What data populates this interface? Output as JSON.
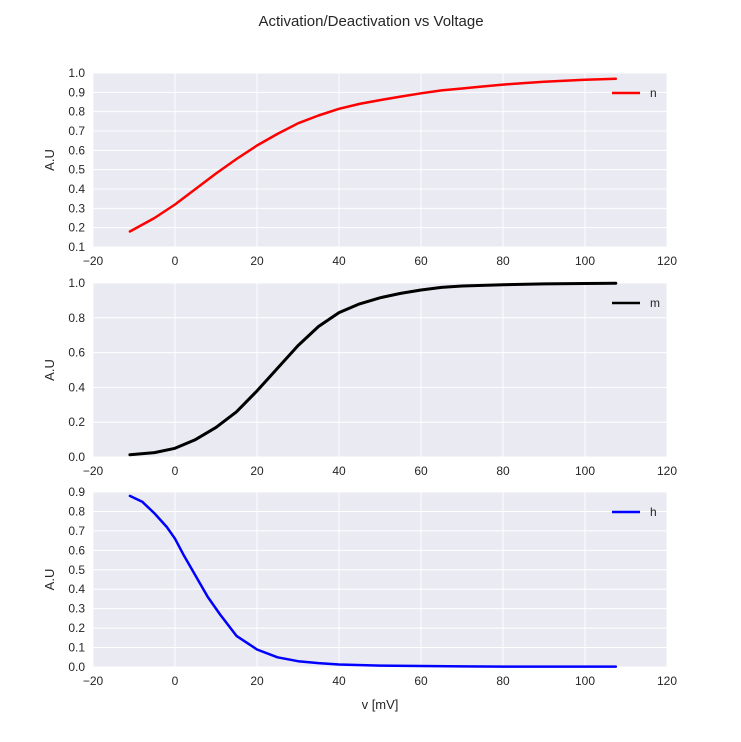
{
  "title": "Activation/Deactivation vs Voltage",
  "colors": {
    "n": "#ff0000",
    "m": "#000000",
    "h": "#0000ff",
    "background": "#eaeaf2",
    "grid": "#ffffff"
  },
  "chart_data": [
    {
      "type": "line",
      "ylabel": "A.U",
      "xlabel": "",
      "xlim": [
        -20,
        120
      ],
      "ylim": [
        0.1,
        1.0
      ],
      "xticks": [
        "−20",
        "0",
        "20",
        "40",
        "60",
        "80",
        "100",
        "120"
      ],
      "yticks": [
        "0.1",
        "0.2",
        "0.3",
        "0.4",
        "0.5",
        "0.6",
        "0.7",
        "0.8",
        "0.9",
        "1.0"
      ],
      "grid": true,
      "legend": "top-right",
      "series": [
        {
          "name": "n",
          "color": "#ff0000",
          "x": [
            -11,
            -5,
            0,
            5,
            10,
            15,
            20,
            25,
            30,
            35,
            40,
            45,
            50,
            55,
            60,
            65,
            70,
            75,
            80,
            85,
            90,
            95,
            100,
            104,
            107.5
          ],
          "y": [
            0.18,
            0.25,
            0.32,
            0.4,
            0.48,
            0.555,
            0.625,
            0.685,
            0.74,
            0.78,
            0.815,
            0.84,
            0.86,
            0.878,
            0.895,
            0.91,
            0.92,
            0.93,
            0.94,
            0.948,
            0.955,
            0.96,
            0.965,
            0.968,
            0.97
          ]
        }
      ]
    },
    {
      "type": "line",
      "ylabel": "A.U",
      "xlabel": "",
      "xlim": [
        -20,
        120
      ],
      "ylim": [
        0.0,
        1.0
      ],
      "xticks": [
        "−20",
        "0",
        "20",
        "40",
        "60",
        "80",
        "100",
        "120"
      ],
      "yticks": [
        "0.0",
        "0.2",
        "0.4",
        "0.6",
        "0.8",
        "1.0"
      ],
      "grid": true,
      "legend": "top-right",
      "series": [
        {
          "name": "m",
          "color": "#000000",
          "x": [
            -11,
            -5,
            0,
            5,
            10,
            15,
            20,
            25,
            30,
            35,
            40,
            45,
            50,
            55,
            60,
            65,
            70,
            80,
            90,
            100,
            107.5
          ],
          "y": [
            0.013,
            0.025,
            0.05,
            0.1,
            0.17,
            0.26,
            0.38,
            0.51,
            0.64,
            0.75,
            0.83,
            0.88,
            0.915,
            0.94,
            0.96,
            0.975,
            0.983,
            0.99,
            0.995,
            0.997,
            0.998
          ]
        }
      ]
    },
    {
      "type": "line",
      "ylabel": "A.U",
      "xlabel": "v [mV]",
      "xlim": [
        -20,
        120
      ],
      "ylim": [
        0.0,
        0.9
      ],
      "xticks": [
        "−20",
        "0",
        "20",
        "40",
        "60",
        "80",
        "100",
        "120"
      ],
      "yticks": [
        "0.0",
        "0.1",
        "0.2",
        "0.3",
        "0.4",
        "0.5",
        "0.6",
        "0.7",
        "0.8",
        "0.9"
      ],
      "grid": true,
      "legend": "top-right",
      "series": [
        {
          "name": "h",
          "color": "#0000ff",
          "x": [
            -11,
            -8,
            -5,
            -2,
            0,
            2,
            5,
            8,
            11,
            15,
            20,
            25,
            30,
            35,
            40,
            50,
            60,
            70,
            80,
            90,
            100,
            107.5
          ],
          "y": [
            0.88,
            0.85,
            0.79,
            0.72,
            0.66,
            0.58,
            0.47,
            0.36,
            0.27,
            0.16,
            0.09,
            0.05,
            0.03,
            0.02,
            0.013,
            0.007,
            0.005,
            0.003,
            0.002,
            0.002,
            0.002,
            0.002
          ]
        }
      ]
    }
  ]
}
